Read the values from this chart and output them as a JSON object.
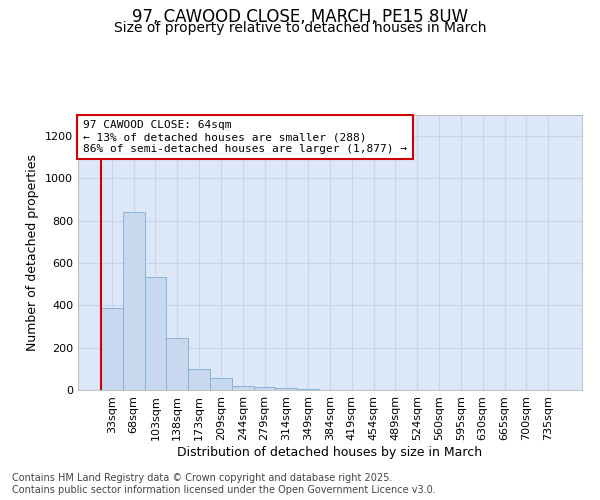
{
  "title1": "97, CAWOOD CLOSE, MARCH, PE15 8UW",
  "title2": "Size of property relative to detached houses in March",
  "xlabel": "Distribution of detached houses by size in March",
  "ylabel": "Number of detached properties",
  "categories": [
    "33sqm",
    "68sqm",
    "103sqm",
    "138sqm",
    "173sqm",
    "209sqm",
    "244sqm",
    "279sqm",
    "314sqm",
    "349sqm",
    "384sqm",
    "419sqm",
    "454sqm",
    "489sqm",
    "524sqm",
    "560sqm",
    "595sqm",
    "630sqm",
    "665sqm",
    "700sqm",
    "735sqm"
  ],
  "values": [
    390,
    840,
    535,
    248,
    100,
    55,
    20,
    15,
    8,
    5,
    2,
    0,
    0,
    0,
    0,
    0,
    0,
    0,
    0,
    0,
    0
  ],
  "bar_color": "#c8d8ee",
  "bar_edge_color": "#7bafd4",
  "vline_color": "#cc0000",
  "annotation_text": "97 CAWOOD CLOSE: 64sqm\n← 13% of detached houses are smaller (288)\n86% of semi-detached houses are larger (1,877) →",
  "annotation_box_facecolor": "#ffffff",
  "annotation_box_edgecolor": "#cc0000",
  "grid_color": "#c8d4e8",
  "plot_bg_color": "#dce8f8",
  "fig_bg_color": "#ffffff",
  "ylim": [
    0,
    1300
  ],
  "yticks": [
    0,
    200,
    400,
    600,
    800,
    1000,
    1200
  ],
  "title_fontsize": 12,
  "subtitle_fontsize": 10,
  "axis_label_fontsize": 9,
  "tick_fontsize": 8,
  "annotation_fontsize": 8,
  "footer_fontsize": 7
}
